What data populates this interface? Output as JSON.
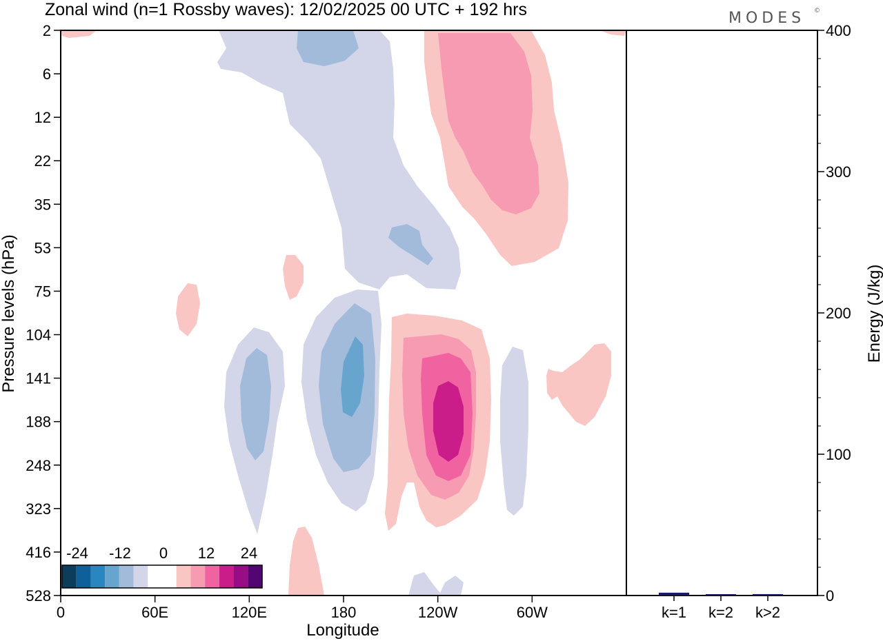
{
  "title": "Zonal wind (n=1 Rossby waves):  12/02/2025  00 UTC  + 192 hrs",
  "logo": "MODES",
  "logo_mark": "©",
  "colors": {
    "neg": [
      "#0c3e5c",
      "#0d6099",
      "#2a86bf",
      "#67a5cf",
      "#a3bbdb",
      "#d3d6e8"
    ],
    "zero": "#ffffff",
    "pos": [
      "#f9c6c3",
      "#f79bb2",
      "#f062a0",
      "#cb1d8a",
      "#980d84",
      "#510671"
    ],
    "bar": "#1a1a66"
  },
  "chart_data": [
    {
      "type": "heatmap",
      "title": "Zonal wind (n=1 Rossby waves):  12/02/2025  00 UTC  + 192 hrs",
      "xlabel": "Longitude",
      "ylabel": "Pressure levels (hPa)",
      "x_ticks": [
        "0",
        "60E",
        "120E",
        "180",
        "120W",
        "60W"
      ],
      "x_tick_lons": [
        0,
        60,
        120,
        180,
        240,
        300
      ],
      "xlim": [
        0,
        360
      ],
      "y_ticks": [
        "2",
        "6",
        "12",
        "22",
        "35",
        "53",
        "75",
        "104",
        "141",
        "188",
        "248",
        "323",
        "416",
        "528"
      ],
      "colorbar": {
        "labels": [
          "-24",
          "-12",
          "0",
          "12",
          "24"
        ],
        "levels": [
          -24,
          -20,
          -16,
          -12,
          -8,
          -4,
          0,
          4,
          8,
          12,
          16,
          20,
          24
        ]
      },
      "features": [
        {
          "sign": "neg",
          "level": 1,
          "lon_center": 195,
          "level_top": "2",
          "level_bottom": "75",
          "desc_value": -4
        },
        {
          "sign": "neg",
          "level": 2,
          "lon_center": 168,
          "level_top": "2",
          "level_bottom": "6",
          "desc_value": -8
        },
        {
          "sign": "neg",
          "level": 2,
          "lon_center": 218,
          "level_top": "35",
          "level_bottom": "53",
          "desc_value": -8
        },
        {
          "sign": "neg",
          "level": 1,
          "lon_center": 122,
          "level_top": "104",
          "level_bottom": "323",
          "desc_value": -4
        },
        {
          "sign": "neg",
          "level": 2,
          "lon_center": 122,
          "level_top": "141",
          "level_bottom": "248",
          "desc_value": -8
        },
        {
          "sign": "neg",
          "level": 1,
          "lon_center": 183,
          "level_top": "75",
          "level_bottom": "323",
          "desc_value": -4
        },
        {
          "sign": "neg",
          "level": 2,
          "lon_center": 183,
          "level_top": "104",
          "level_bottom": "248",
          "desc_value": -8
        },
        {
          "sign": "neg",
          "level": 3,
          "lon_center": 186,
          "level_top": "104",
          "level_bottom": "188",
          "desc_value": -12
        },
        {
          "sign": "neg",
          "level": 1,
          "lon_center": 289,
          "level_top": "141",
          "level_bottom": "323",
          "desc_value": -4
        },
        {
          "sign": "neg",
          "level": 1,
          "lon_center": 240,
          "level_top": "416",
          "level_bottom": "528",
          "desc_value": -4
        },
        {
          "sign": "pos",
          "level": 1,
          "lon_center": 268,
          "level_top": "2",
          "level_bottom": "53",
          "desc_value": 4
        },
        {
          "sign": "pos",
          "level": 2,
          "lon_center": 265,
          "level_top": "2",
          "level_bottom": "35",
          "desc_value": 8
        },
        {
          "sign": "pos",
          "level": 1,
          "lon_center": 240,
          "level_top": "104",
          "level_bottom": "323",
          "desc_value": 4
        },
        {
          "sign": "pos",
          "level": 2,
          "lon_center": 238,
          "level_top": "104",
          "level_bottom": "248",
          "desc_value": 8
        },
        {
          "sign": "pos",
          "level": 3,
          "lon_center": 240,
          "level_top": "141",
          "level_bottom": "248",
          "desc_value": 12
        },
        {
          "sign": "pos",
          "level": 4,
          "lon_center": 240,
          "level_top": "141",
          "level_bottom": "188",
          "desc_value": 16
        },
        {
          "sign": "pos",
          "level": 1,
          "lon_center": 75,
          "level_top": "75",
          "level_bottom": "104",
          "desc_value": 4
        },
        {
          "sign": "pos",
          "level": 1,
          "lon_center": 148,
          "level_top": "53",
          "level_bottom": "75",
          "desc_value": 4
        },
        {
          "sign": "pos",
          "level": 1,
          "lon_center": 330,
          "level_top": "104",
          "level_bottom": "188",
          "desc_value": 4
        },
        {
          "sign": "pos",
          "level": 1,
          "lon_center": 155,
          "level_top": "416",
          "level_bottom": "528",
          "desc_value": 4
        }
      ]
    },
    {
      "type": "bar",
      "ylabel": "Energy (J/kg)",
      "categories": [
        "k=1",
        "k=2",
        "k>2"
      ],
      "values": [
        2,
        0.5,
        1
      ],
      "ylim": [
        0,
        400
      ],
      "y_ticks": [
        "0",
        "100",
        "200",
        "300",
        "400"
      ]
    }
  ]
}
